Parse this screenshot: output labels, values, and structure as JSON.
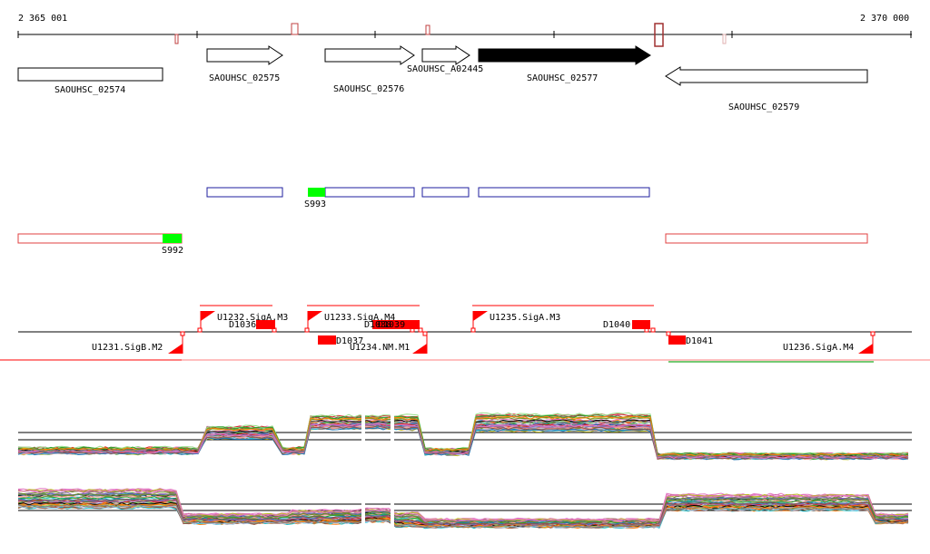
{
  "ruler": {
    "start_label": "2 365 001",
    "end_label": "2 370 000"
  },
  "genes": [
    {
      "label": "SAOUHSC_02574",
      "strand": "+",
      "filled": false
    },
    {
      "label": "SAOUHSC_02575",
      "strand": "+",
      "filled": false
    },
    {
      "label": "SAOUHSC_02576",
      "strand": "+",
      "filled": false
    },
    {
      "label": "SAOUHSC_A02445",
      "strand": "+",
      "filled": false
    },
    {
      "label": "SAOUHSC_02577",
      "strand": "+",
      "filled": true
    },
    {
      "label": "SAOUHSC_02579",
      "strand": "-",
      "filled": false
    }
  ],
  "segments": [
    {
      "label": "S993"
    },
    {
      "label": "S992"
    }
  ],
  "tus": [
    {
      "label": "U1232.SigA.M3"
    },
    {
      "label": "U1233.SigA.M4"
    },
    {
      "label": "U1235.SigA.M3"
    },
    {
      "label": "U1231.SigB.M2"
    },
    {
      "label": "U1234.NM.M1"
    },
    {
      "label": "U1236.SigA.M4"
    }
  ],
  "downshifts": [
    {
      "label": "D1036"
    },
    {
      "label": "D1038"
    },
    {
      "label": "D1039"
    },
    {
      "label": "D1040"
    },
    {
      "label": "D1037"
    },
    {
      "label": "D1041"
    }
  ],
  "colors": {
    "tu_red": "#ff0000",
    "segment_blue": "#1f1f9f",
    "segment_green": "#00ff00",
    "terminator_green": "#22aa22",
    "marker_darkred": "#a03030"
  },
  "expression": {
    "profile_count": 40
  }
}
